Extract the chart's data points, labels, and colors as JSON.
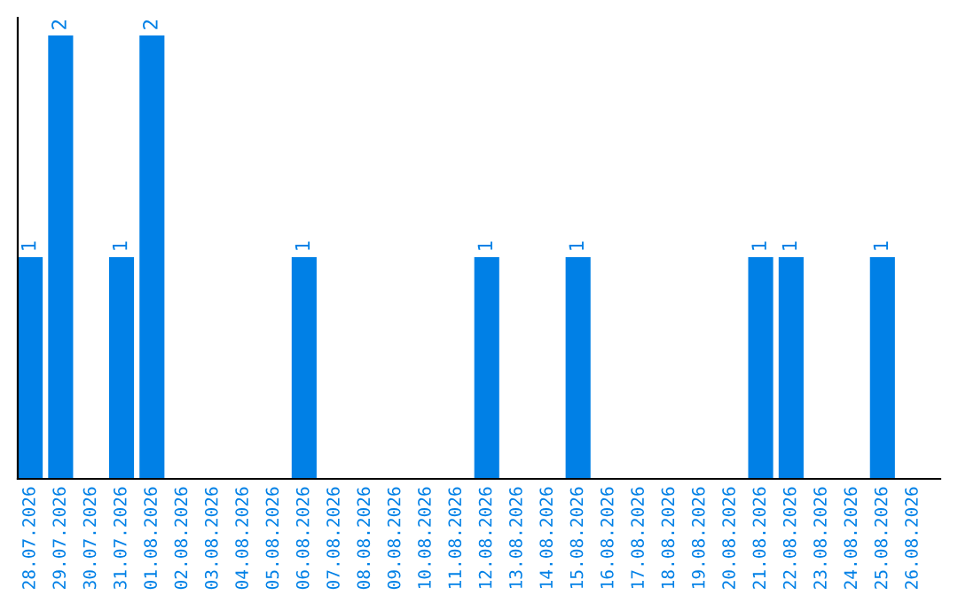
{
  "chart_data": {
    "type": "bar",
    "categories": [
      "28.07.2026",
      "29.07.2026",
      "30.07.2026",
      "31.07.2026",
      "01.08.2026",
      "02.08.2026",
      "03.08.2026",
      "04.08.2026",
      "05.08.2026",
      "06.08.2026",
      "07.08.2026",
      "08.08.2026",
      "09.08.2026",
      "10.08.2026",
      "11.08.2026",
      "12.08.2026",
      "13.08.2026",
      "14.08.2026",
      "15.08.2026",
      "16.08.2026",
      "17.08.2026",
      "18.08.2026",
      "19.08.2026",
      "20.08.2026",
      "21.08.2026",
      "22.08.2026",
      "23.08.2026",
      "24.08.2026",
      "25.08.2026",
      "26.08.2026"
    ],
    "values": [
      1,
      2,
      0,
      1,
      2,
      0,
      0,
      0,
      0,
      1,
      0,
      0,
      0,
      0,
      0,
      1,
      0,
      0,
      1,
      0,
      0,
      0,
      0,
      0,
      1,
      1,
      0,
      0,
      1,
      0
    ],
    "value_labels": [
      "1",
      "2",
      null,
      "1",
      "2",
      null,
      null,
      null,
      null,
      "1",
      null,
      null,
      null,
      null,
      null,
      "1",
      null,
      null,
      "1",
      null,
      null,
      null,
      null,
      null,
      "1",
      "1",
      null,
      null,
      "1",
      null
    ],
    "color": "#0080e6",
    "ylim": [
      0,
      2.08
    ],
    "tick_labels": "x"
  }
}
